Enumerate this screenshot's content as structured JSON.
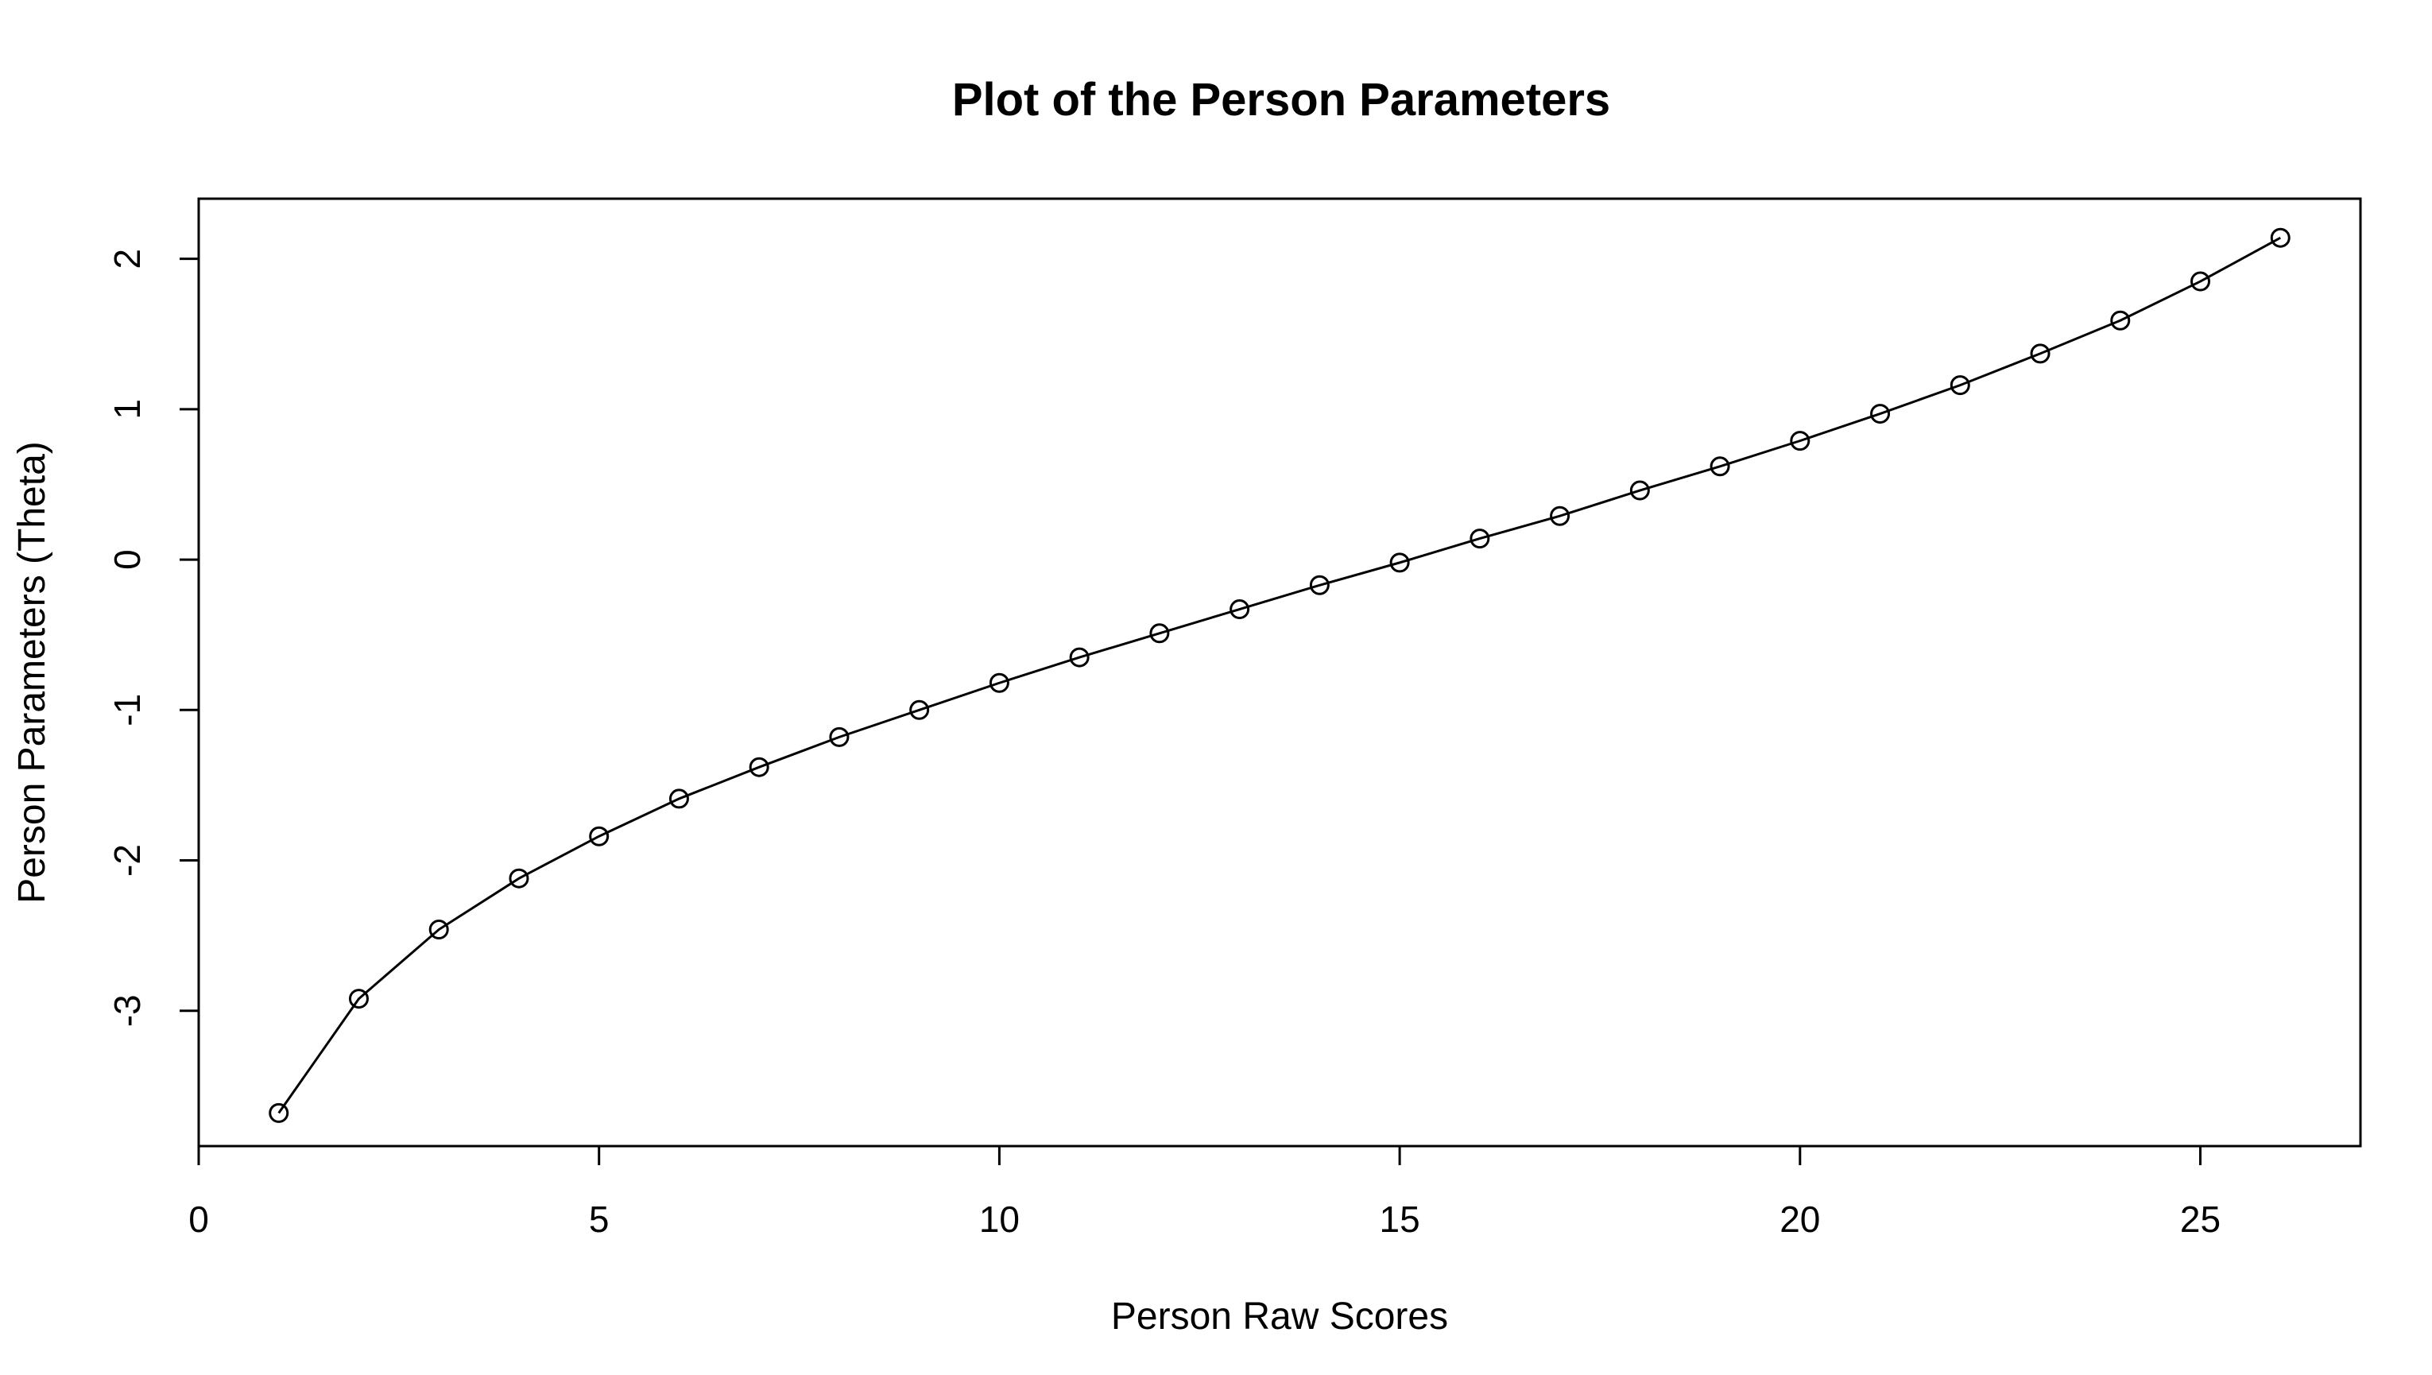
{
  "chart_data": {
    "type": "line",
    "title": "Plot of the Person Parameters",
    "xlabel": "Person Raw Scores",
    "ylabel": "Person Parameters (Theta)",
    "xlim": [
      0,
      27
    ],
    "ylim": [
      -3.9,
      2.4
    ],
    "x_ticks": [
      0,
      5,
      10,
      15,
      20,
      25
    ],
    "y_ticks": [
      -3,
      -2,
      -1,
      0,
      1,
      2
    ],
    "grid": false,
    "markers": "open-circle",
    "x": [
      1,
      2,
      3,
      4,
      5,
      6,
      7,
      8,
      9,
      10,
      11,
      12,
      13,
      14,
      15,
      16,
      17,
      18,
      19,
      20,
      21,
      22,
      23,
      24,
      25,
      26
    ],
    "series": [
      {
        "values": [
          -3.68,
          -2.92,
          -2.46,
          -2.12,
          -1.84,
          -1.59,
          -1.38,
          -1.18,
          -1.0,
          -0.82,
          -0.65,
          -0.49,
          -0.33,
          -0.17,
          -0.02,
          0.14,
          0.29,
          0.46,
          0.62,
          0.79,
          0.97,
          1.16,
          1.37,
          1.59,
          1.85,
          2.14
        ]
      }
    ]
  }
}
